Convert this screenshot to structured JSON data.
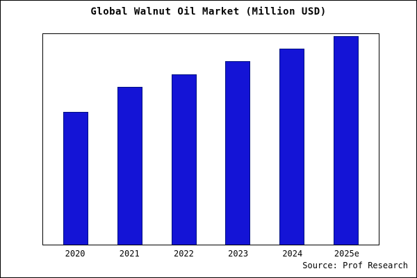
{
  "title": "Global Walnut Oil Market (Million USD)",
  "source_caption": "Source: Prof Research",
  "colors": {
    "bar_fill": "#1414d6",
    "bar_edge": "#001080",
    "axis": "#000000",
    "background": "#ffffff"
  },
  "chart_data": {
    "type": "bar",
    "categories": [
      "2020",
      "2021",
      "2022",
      "2023",
      "2024",
      "2025e"
    ],
    "values": [
      63,
      75,
      81,
      87,
      93,
      99
    ],
    "title": "Global Walnut Oil Market (Million USD)",
    "xlabel": "",
    "ylabel": "",
    "ylim": [
      0,
      100
    ],
    "grid": false,
    "legend": false,
    "y_axis_tick_labels_visible": false
  }
}
